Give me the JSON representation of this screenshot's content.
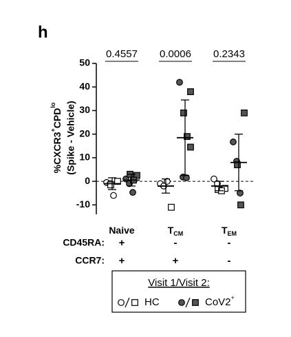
{
  "chart_data": {
    "type": "scatter",
    "panel_label": "h",
    "ylabel": {
      "line1": [
        "%CXCR3",
        "+",
        "CPD",
        "lo"
      ],
      "line2": "(Spike - Vehicle)"
    },
    "categories": [
      {
        "main": "Naive"
      },
      {
        "main": "T",
        "sub": "CM"
      },
      {
        "main": "T",
        "sub": "EM"
      }
    ],
    "ylim": [
      -14,
      50
    ],
    "yticks": [
      -10,
      0,
      10,
      20,
      30,
      40,
      50
    ],
    "reference_line": 0,
    "p_values": [
      "0.4557",
      "0.0006",
      "0.2343"
    ],
    "markers": [
      "circle",
      "square"
    ],
    "groups": [
      {
        "name": "HC",
        "color": "#ffffff",
        "visit1": [
          [
            -0.5,
            -1,
            -6
          ],
          [
            -1,
            -2,
            0
          ],
          [
            1,
            -1
          ]
        ],
        "visit2": [
          [
            0,
            -1.5
          ],
          [
            -11
          ],
          [
            -3,
            -3.5,
            -4
          ]
        ],
        "mean": [
          -1,
          -2,
          -2
        ],
        "sd": [
          2.5,
          3,
          2
        ]
      },
      {
        "name": "CoV2",
        "name_sup": "+",
        "color": "#555555",
        "visit1": [
          [
            1,
            -1,
            -4.7
          ],
          [
            42,
            1.8,
            1.5
          ],
          [
            16.7,
            8.5,
            -5
          ]
        ],
        "visit2": [
          [
            2.5,
            3,
            0.5
          ],
          [
            38,
            29,
            19,
            14.5
          ],
          [
            29,
            7,
            -10
          ]
        ],
        "mean": [
          0.5,
          18.5,
          8
        ],
        "sd": [
          2.5,
          16,
          12
        ]
      }
    ],
    "rows": [
      {
        "label": "CD45RA:",
        "values": [
          "+",
          "-",
          "-"
        ]
      },
      {
        "label": "CCR7:",
        "values": [
          "+",
          "+",
          "-"
        ]
      }
    ],
    "legend": {
      "title": "Visit 1/Visit 2:"
    }
  }
}
